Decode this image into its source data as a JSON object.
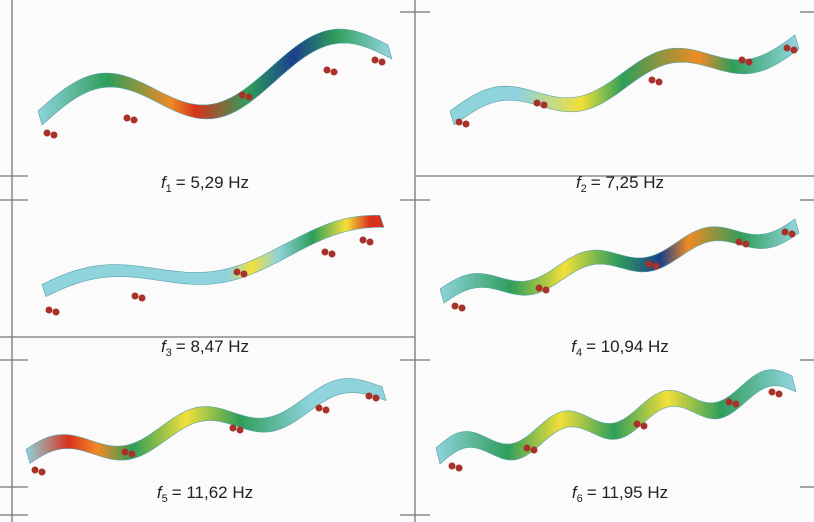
{
  "panels": [
    {
      "symbol": "f",
      "index": "1",
      "value": "= 5,29 Hz"
    },
    {
      "symbol": "f",
      "index": "2",
      "value": "= 7,25 Hz"
    },
    {
      "symbol": "f",
      "index": "3",
      "value": "= 8,47 Hz"
    },
    {
      "symbol": "f",
      "index": "4",
      "value": "= 10,94 Hz"
    },
    {
      "symbol": "f",
      "index": "5",
      "value": "= 11,62 Hz"
    },
    {
      "symbol": "f",
      "index": "6",
      "value": "= 11,95 Hz"
    }
  ]
}
